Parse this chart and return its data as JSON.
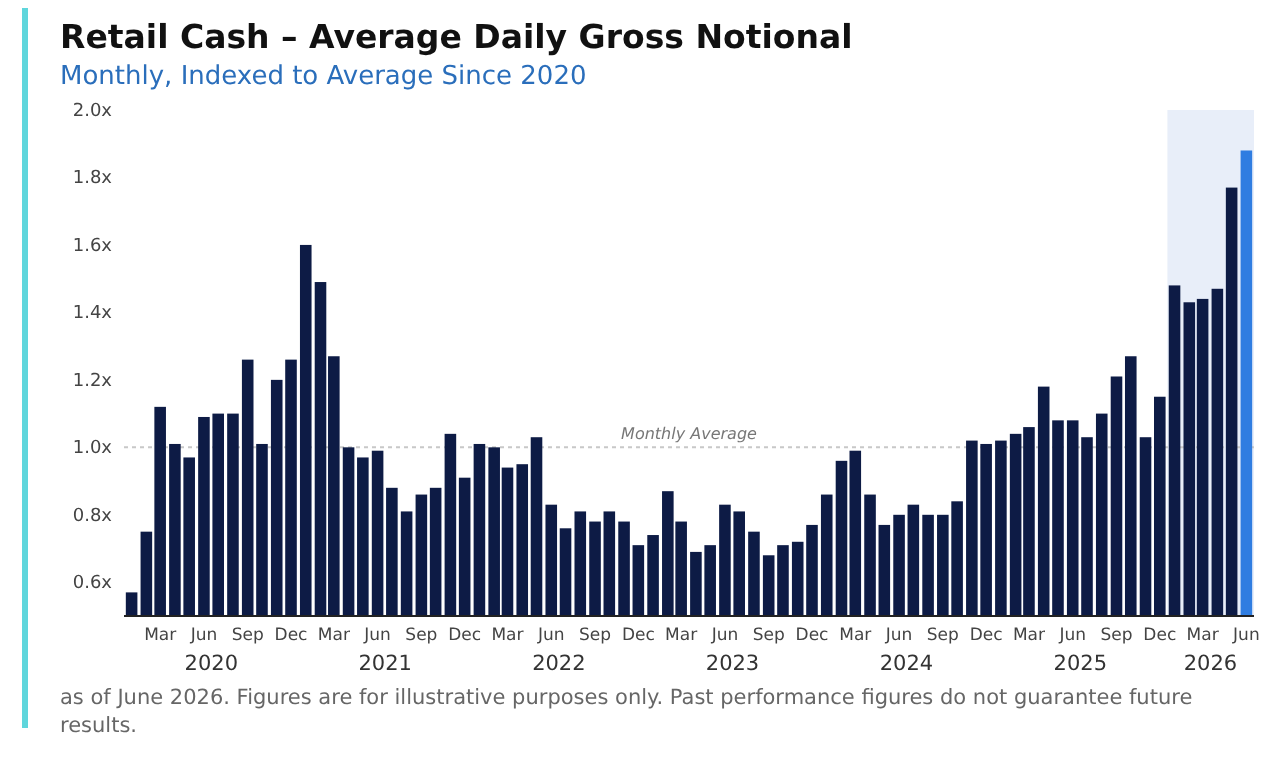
{
  "chart_data": {
    "type": "bar",
    "title": "Retail Cash – Average Daily Gross Notional",
    "subtitle": "Monthly, Indexed to Average Since 2020",
    "x": [
      "2020-01",
      "2020-02",
      "2020-03",
      "2020-04",
      "2020-05",
      "2020-06",
      "2020-07",
      "2020-08",
      "2020-09",
      "2020-10",
      "2020-11",
      "2020-12",
      "2021-01",
      "2021-02",
      "2021-03",
      "2021-04",
      "2021-05",
      "2021-06",
      "2021-07",
      "2021-08",
      "2021-09",
      "2021-10",
      "2021-11",
      "2021-12",
      "2022-01",
      "2022-02",
      "2022-03",
      "2022-04",
      "2022-05",
      "2022-06",
      "2022-07",
      "2022-08",
      "2022-09",
      "2022-10",
      "2022-11",
      "2022-12",
      "2023-01",
      "2023-02",
      "2023-03",
      "2023-04",
      "2023-05",
      "2023-06",
      "2023-07",
      "2023-08",
      "2023-09",
      "2023-10",
      "2023-11",
      "2023-12",
      "2024-01",
      "2024-02",
      "2024-03",
      "2024-04",
      "2024-05",
      "2024-06",
      "2024-07",
      "2024-08",
      "2024-09",
      "2024-10",
      "2024-11",
      "2024-12",
      "2025-01",
      "2025-02",
      "2025-03",
      "2025-04",
      "2025-05",
      "2025-06",
      "2025-07",
      "2025-08",
      "2025-09",
      "2025-10",
      "2025-11",
      "2025-12",
      "2026-01",
      "2026-02",
      "2026-03",
      "2026-04",
      "2026-05",
      "2026-06"
    ],
    "values": [
      0.57,
      0.75,
      1.12,
      1.01,
      0.97,
      1.09,
      1.1,
      1.1,
      1.26,
      1.01,
      1.2,
      1.26,
      1.6,
      1.49,
      1.27,
      1.0,
      0.97,
      0.99,
      0.88,
      0.81,
      0.86,
      0.88,
      1.04,
      0.91,
      1.01,
      1.0,
      0.94,
      0.95,
      1.03,
      0.83,
      0.76,
      0.81,
      0.78,
      0.81,
      0.78,
      0.71,
      0.74,
      0.87,
      0.78,
      0.69,
      0.71,
      0.83,
      0.81,
      0.75,
      0.68,
      0.71,
      0.72,
      0.77,
      0.86,
      0.96,
      0.99,
      0.86,
      0.77,
      0.8,
      0.83,
      0.8,
      0.8,
      0.84,
      1.02,
      1.01,
      1.02,
      1.04,
      1.06,
      1.18,
      1.08,
      1.08,
      1.03,
      1.1,
      1.21,
      1.27,
      1.03,
      1.15,
      1.48,
      1.43,
      1.44,
      1.47,
      1.77,
      1.88
    ],
    "colors": [
      "#0d1b45",
      "#0d1b45",
      "#0d1b45",
      "#0d1b45",
      "#0d1b45",
      "#0d1b45",
      "#0d1b45",
      "#0d1b45",
      "#0d1b45",
      "#0d1b45",
      "#0d1b45",
      "#0d1b45",
      "#0d1b45",
      "#0d1b45",
      "#0d1b45",
      "#0d1b45",
      "#0d1b45",
      "#0d1b45",
      "#0d1b45",
      "#0d1b45",
      "#0d1b45",
      "#0d1b45",
      "#0d1b45",
      "#0d1b45",
      "#0d1b45",
      "#0d1b45",
      "#0d1b45",
      "#0d1b45",
      "#0d1b45",
      "#0d1b45",
      "#0d1b45",
      "#0d1b45",
      "#0d1b45",
      "#0d1b45",
      "#0d1b45",
      "#0d1b45",
      "#0d1b45",
      "#0d1b45",
      "#0d1b45",
      "#0d1b45",
      "#0d1b45",
      "#0d1b45",
      "#0d1b45",
      "#0d1b45",
      "#0d1b45",
      "#0d1b45",
      "#0d1b45",
      "#0d1b45",
      "#0d1b45",
      "#0d1b45",
      "#0d1b45",
      "#0d1b45",
      "#0d1b45",
      "#0d1b45",
      "#0d1b45",
      "#0d1b45",
      "#0d1b45",
      "#0d1b45",
      "#0d1b45",
      "#0d1b45",
      "#0d1b45",
      "#0d1b45",
      "#0d1b45",
      "#0d1b45",
      "#0d1b45",
      "#0d1b45",
      "#0d1b45",
      "#0d1b45",
      "#0d1b45",
      "#0d1b45",
      "#0d1b45",
      "#0d1b45",
      "#0d1b45",
      "#0d1b45",
      "#0d1b45",
      "#0d1b45",
      "#0d1b45",
      "#2f7de1"
    ],
    "xlim": [
      "2019-12-16",
      "2026-06-17"
    ],
    "xticks": [
      {
        "value": "2020-03",
        "label": "Mar"
      },
      {
        "value": "2020-06",
        "label": "Jun"
      },
      {
        "value": "2020-09",
        "label": "Sep"
      },
      {
        "value": "2020-12",
        "label": "Dec"
      },
      {
        "value": "2021-03",
        "label": "Mar"
      },
      {
        "value": "2021-06",
        "label": "Jun"
      },
      {
        "value": "2021-09",
        "label": "Sep"
      },
      {
        "value": "2021-12",
        "label": "Dec"
      },
      {
        "value": "2022-03",
        "label": "Mar"
      },
      {
        "value": "2022-06",
        "label": "Jun"
      },
      {
        "value": "2022-09",
        "label": "Sep"
      },
      {
        "value": "2022-12",
        "label": "Dec"
      },
      {
        "value": "2023-03",
        "label": "Mar"
      },
      {
        "value": "2023-06",
        "label": "Jun"
      },
      {
        "value": "2023-09",
        "label": "Sep"
      },
      {
        "value": "2023-12",
        "label": "Dec"
      },
      {
        "value": "2024-03",
        "label": "Mar"
      },
      {
        "value": "2024-06",
        "label": "Jun"
      },
      {
        "value": "2024-09",
        "label": "Sep"
      },
      {
        "value": "2024-12",
        "label": "Dec"
      },
      {
        "value": "2025-03",
        "label": "Mar"
      },
      {
        "value": "2025-06",
        "label": "Jun"
      },
      {
        "value": "2025-09",
        "label": "Sep"
      },
      {
        "value": "2025-12",
        "label": "Dec"
      },
      {
        "value": "2026-03",
        "label": "Mar"
      },
      {
        "value": "2026-06",
        "label": "Jun"
      }
    ],
    "ylim": [
      0.5,
      2.0
    ],
    "yticks": [
      {
        "value": 0.6,
        "label": "0.6x"
      },
      {
        "value": 0.8,
        "label": "0.8x"
      },
      {
        "value": 1.0,
        "label": "1.0x"
      },
      {
        "value": 1.2,
        "label": "1.2x"
      },
      {
        "value": 1.4,
        "label": "1.4x"
      },
      {
        "value": 1.6,
        "label": "1.6x"
      },
      {
        "value": 1.8,
        "label": "1.8x"
      },
      {
        "value": 2.0,
        "label": "2.0x"
      }
    ],
    "ref_lines": [
      {
        "axis": "y",
        "value": 1.0,
        "label": "Monthly Average",
        "color": "#c8c8c8",
        "line_style": "dotted"
      }
    ],
    "bands": [
      {
        "axis": "x",
        "from": "2025-12-17",
        "to": "2026-06-17",
        "color": "#e8eef9"
      }
    ],
    "annotations": [
      "2020",
      "2021",
      "2022",
      "2023",
      "2024",
      "2025",
      "2026",
      "as of June 2026. Figures are for illustrative purposes only. Past performance figures do not guarantee future results."
    ],
    "grid": false
  }
}
